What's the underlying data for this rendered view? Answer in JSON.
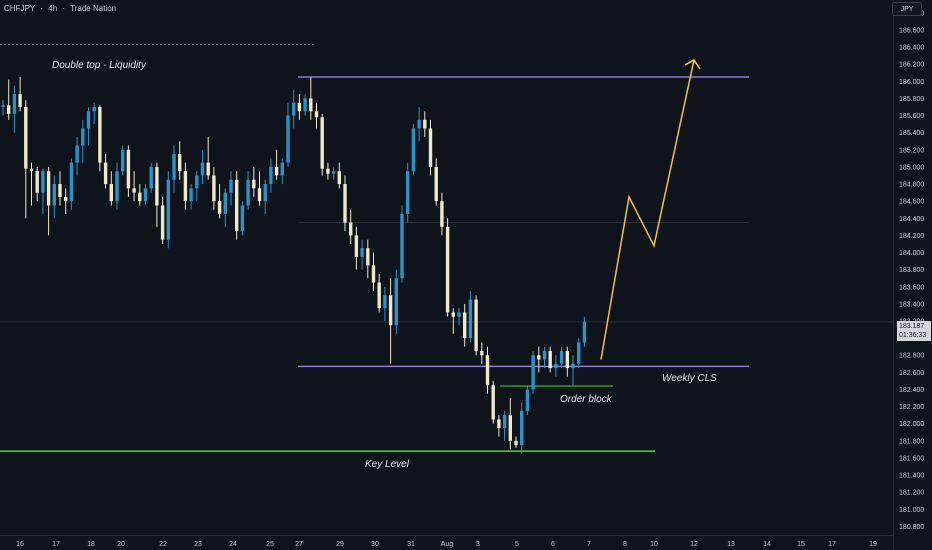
{
  "header": {
    "symbol": "CHFJPY",
    "interval": "4h",
    "exchange": "Trade Nation",
    "separator": "·",
    "currency": "JPY"
  },
  "last_price": {
    "value": "183.187",
    "countdown": "01:36:33"
  },
  "annotations": {
    "double_top": "Double top - Liquidity",
    "weekly_cls": "Weekly CLS",
    "order_block": "Order block",
    "key_level": "Key Level"
  },
  "colors": {
    "background": "#0f131c",
    "bull_candle": "#2a93c5",
    "bear_candle": "#ede9c9",
    "purple_line": "#8e7ad4",
    "green_line": "#3ddc2c",
    "arrow": "#f2c23c",
    "text": "#c9ccd3"
  },
  "chart_data": {
    "type": "candlestick",
    "y_axis": {
      "range": [
        180.7,
        186.95
      ],
      "ticks": [
        "186.800",
        "186.600",
        "186.400",
        "186.200",
        "186.000",
        "185.800",
        "185.600",
        "185.400",
        "185.200",
        "185.000",
        "184.800",
        "184.600",
        "184.400",
        "184.200",
        "184.000",
        "183.800",
        "183.600",
        "183.400",
        "183.200",
        "183.000",
        "182.800",
        "182.600",
        "182.400",
        "182.200",
        "182.000",
        "181.800",
        "181.600",
        "181.400",
        "181.200",
        "181.000",
        "180.800"
      ]
    },
    "x_axis": {
      "ticks": [
        "16",
        "17",
        "18",
        "20",
        "22",
        "23",
        "24",
        "25",
        "27",
        "29",
        "30",
        "31",
        "Aug",
        "3",
        "5",
        "6",
        "7",
        "8",
        "10",
        "12",
        "13",
        "14",
        "15",
        "17",
        "19"
      ]
    },
    "levels": [
      {
        "label": "Double top - Liquidity",
        "price": 186.43,
        "style": "dashed"
      },
      {
        "price": 186.05,
        "style": "purple"
      },
      {
        "label": "Weekly CLS",
        "price": 182.67,
        "style": "purple"
      },
      {
        "label": "Order block",
        "price": 182.44,
        "style": "green-short"
      },
      {
        "label": "Key Level",
        "price": 181.68,
        "style": "green"
      },
      {
        "price": 184.35,
        "style": "faint"
      },
      {
        "price": 183.19,
        "style": "faint"
      }
    ],
    "projection": [
      {
        "date": "7",
        "price": 182.75
      },
      {
        "date": "8",
        "price": 184.65
      },
      {
        "date": "10",
        "price": 184.08
      },
      {
        "date": "12",
        "price": 186.25
      }
    ],
    "candles": [
      [
        185.7,
        185.78,
        185.6,
        185.72
      ],
      [
        185.72,
        186.02,
        185.55,
        185.62
      ],
      [
        185.62,
        185.95,
        185.4,
        185.85
      ],
      [
        185.85,
        186.05,
        185.65,
        185.7
      ],
      [
        185.7,
        185.78,
        184.4,
        184.98
      ],
      [
        184.98,
        185.05,
        184.55,
        184.95
      ],
      [
        184.95,
        185.0,
        184.6,
        184.7
      ],
      [
        184.7,
        184.98,
        184.45,
        184.95
      ],
      [
        184.95,
        185.0,
        184.2,
        184.55
      ],
      [
        184.55,
        184.9,
        184.4,
        184.8
      ],
      [
        184.8,
        184.95,
        184.55,
        184.65
      ],
      [
        184.65,
        184.75,
        184.45,
        184.6
      ],
      [
        184.6,
        185.1,
        184.5,
        185.05
      ],
      [
        185.05,
        185.35,
        184.9,
        185.25
      ],
      [
        185.25,
        185.55,
        185.05,
        185.45
      ],
      [
        185.45,
        185.7,
        185.25,
        185.65
      ],
      [
        185.65,
        185.75,
        185.5,
        185.7
      ],
      [
        185.7,
        185.72,
        184.95,
        185.05
      ],
      [
        185.05,
        185.15,
        184.75,
        184.8
      ],
      [
        184.8,
        184.95,
        184.55,
        184.6
      ],
      [
        184.6,
        185.05,
        184.5,
        184.95
      ],
      [
        184.95,
        185.25,
        184.9,
        185.2
      ],
      [
        185.2,
        185.25,
        184.65,
        184.75
      ],
      [
        184.75,
        184.95,
        184.6,
        184.7
      ],
      [
        184.7,
        184.8,
        184.55,
        184.6
      ],
      [
        184.6,
        184.8,
        184.55,
        184.75
      ],
      [
        184.75,
        185.05,
        184.7,
        185.0
      ],
      [
        185.0,
        185.05,
        184.3,
        184.55
      ],
      [
        184.55,
        184.65,
        184.1,
        184.15
      ],
      [
        184.15,
        184.95,
        184.05,
        184.85
      ],
      [
        184.85,
        185.25,
        184.7,
        185.15
      ],
      [
        185.15,
        185.3,
        184.85,
        184.95
      ],
      [
        184.95,
        185.05,
        184.5,
        184.6
      ],
      [
        184.6,
        184.8,
        184.5,
        184.75
      ],
      [
        184.75,
        184.95,
        184.6,
        184.9
      ],
      [
        184.9,
        185.2,
        184.8,
        185.05
      ],
      [
        185.05,
        185.35,
        184.85,
        184.9
      ],
      [
        184.9,
        185.0,
        184.5,
        184.6
      ],
      [
        184.6,
        184.8,
        184.4,
        184.45
      ],
      [
        184.45,
        184.75,
        184.3,
        184.7
      ],
      [
        184.7,
        184.95,
        184.55,
        184.85
      ],
      [
        184.85,
        184.95,
        184.15,
        184.25
      ],
      [
        184.25,
        184.6,
        184.2,
        184.55
      ],
      [
        184.55,
        184.95,
        184.5,
        184.85
      ],
      [
        184.85,
        185.0,
        184.65,
        184.75
      ],
      [
        184.75,
        184.95,
        184.55,
        184.6
      ],
      [
        184.6,
        184.85,
        184.45,
        184.8
      ],
      [
        184.8,
        185.1,
        184.7,
        185.0
      ],
      [
        185.0,
        185.2,
        184.85,
        184.9
      ],
      [
        184.9,
        185.1,
        184.8,
        185.05
      ],
      [
        185.05,
        185.75,
        185.0,
        185.6
      ],
      [
        185.6,
        185.9,
        185.45,
        185.75
      ],
      [
        185.75,
        185.85,
        185.55,
        185.65
      ],
      [
        185.65,
        185.85,
        185.6,
        185.8
      ],
      [
        185.8,
        186.05,
        185.55,
        185.65
      ],
      [
        185.65,
        185.75,
        185.45,
        185.58
      ],
      [
        185.58,
        185.62,
        184.9,
        184.98
      ],
      [
        184.98,
        185.05,
        184.85,
        184.92
      ],
      [
        184.92,
        185.0,
        184.85,
        184.95
      ],
      [
        184.95,
        185.05,
        184.75,
        184.8
      ],
      [
        184.8,
        184.9,
        184.25,
        184.35
      ],
      [
        184.35,
        184.5,
        184.1,
        184.2
      ],
      [
        184.2,
        184.3,
        183.8,
        183.95
      ],
      [
        183.95,
        184.15,
        183.8,
        184.05
      ],
      [
        184.05,
        184.15,
        183.7,
        183.85
      ],
      [
        183.85,
        184.0,
        183.55,
        183.65
      ],
      [
        183.65,
        183.75,
        183.3,
        183.35
      ],
      [
        183.35,
        183.6,
        183.2,
        183.5
      ],
      [
        183.5,
        183.7,
        182.7,
        183.15
      ],
      [
        183.15,
        183.8,
        183.05,
        183.7
      ],
      [
        183.7,
        184.55,
        183.65,
        184.45
      ],
      [
        184.45,
        185.05,
        184.35,
        184.95
      ],
      [
        184.95,
        185.5,
        184.9,
        185.45
      ],
      [
        185.45,
        185.7,
        185.3,
        185.55
      ],
      [
        185.55,
        185.65,
        185.35,
        185.45
      ],
      [
        185.45,
        185.55,
        184.9,
        185.0
      ],
      [
        185.0,
        185.1,
        184.55,
        184.6
      ],
      [
        184.6,
        184.7,
        184.2,
        184.3
      ],
      [
        184.3,
        184.4,
        183.25,
        183.3
      ],
      [
        183.3,
        183.35,
        183.05,
        183.25
      ],
      [
        183.25,
        183.35,
        183.15,
        183.3
      ],
      [
        183.3,
        183.4,
        182.9,
        183.0
      ],
      [
        183.0,
        183.55,
        182.95,
        183.45
      ],
      [
        183.45,
        183.5,
        182.8,
        182.85
      ],
      [
        182.85,
        182.95,
        182.7,
        182.8
      ],
      [
        182.8,
        182.9,
        182.35,
        182.45
      ],
      [
        182.45,
        182.5,
        182.0,
        182.05
      ],
      [
        182.05,
        182.1,
        181.85,
        181.95
      ],
      [
        181.95,
        182.15,
        181.8,
        182.1
      ],
      [
        182.1,
        182.3,
        181.7,
        181.8
      ],
      [
        181.8,
        181.85,
        181.72,
        181.75
      ],
      [
        181.75,
        182.25,
        181.65,
        182.15
      ],
      [
        182.15,
        182.45,
        182.1,
        182.4
      ],
      [
        182.4,
        182.85,
        182.35,
        182.8
      ],
      [
        182.8,
        182.9,
        182.6,
        182.75
      ],
      [
        182.75,
        182.9,
        182.65,
        182.85
      ],
      [
        182.85,
        182.9,
        182.6,
        182.65
      ],
      [
        182.65,
        182.8,
        182.55,
        182.7
      ],
      [
        182.7,
        182.9,
        182.65,
        182.85
      ],
      [
        182.85,
        182.9,
        182.55,
        182.65
      ],
      [
        182.65,
        182.8,
        182.45,
        182.7
      ],
      [
        182.7,
        183.0,
        182.65,
        182.95
      ],
      [
        182.95,
        183.25,
        182.9,
        183.19
      ]
    ]
  }
}
